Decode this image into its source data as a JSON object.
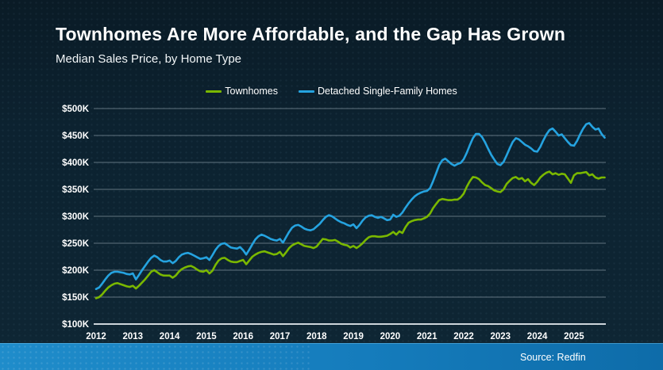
{
  "footer": {
    "source": "Source: Redfin"
  },
  "chart_data": {
    "type": "line",
    "title": "Townhomes Are More Affordable, and the Gap Has Grown",
    "subtitle": "Median Sales Price, by Home Type",
    "frequency": "monthly",
    "x_start": "2012-01",
    "x_end": "2025-11",
    "x_tick_labels": [
      "2012",
      "2013",
      "2014",
      "2015",
      "2016",
      "2017",
      "2018",
      "2019",
      "2020",
      "2021",
      "2022",
      "2023",
      "2024",
      "2025"
    ],
    "y_tick_values": [
      500,
      450,
      400,
      350,
      300,
      250,
      200,
      150,
      100
    ],
    "y_tick_labels": [
      "$500K",
      "$450K",
      "$400K",
      "$350K",
      "$300K",
      "$250K",
      "$200K",
      "$150K",
      "$100K"
    ],
    "ylim": [
      100,
      500
    ],
    "unit": "USD thousands",
    "grid": true,
    "legend_position": "top-center",
    "colors": {
      "townhomes": "#7ab800",
      "detached": "#25a3e0",
      "gridline": "#7e8f9a",
      "axis": "#e8eef2",
      "footer_bar": "#157cbc",
      "background": "#0c2230"
    },
    "series": [
      {
        "name": "Townhomes",
        "color": "#7ab800",
        "values": [
          148,
          150,
          155,
          162,
          168,
          172,
          175,
          176,
          174,
          172,
          170,
          169,
          171,
          166,
          171,
          177,
          183,
          190,
          197,
          200,
          196,
          192,
          190,
          190,
          190,
          186,
          190,
          197,
          202,
          205,
          207,
          208,
          205,
          201,
          198,
          197,
          200,
          194,
          199,
          210,
          218,
          222,
          223,
          219,
          216,
          215,
          215,
          217,
          219,
          211,
          218,
          225,
          229,
          232,
          234,
          235,
          233,
          231,
          229,
          230,
          234,
          226,
          233,
          241,
          246,
          249,
          251,
          248,
          245,
          244,
          243,
          241,
          244,
          251,
          258,
          257,
          255,
          255,
          256,
          253,
          249,
          247,
          246,
          242,
          245,
          241,
          245,
          250,
          256,
          261,
          263,
          263,
          262,
          262,
          263,
          264,
          267,
          271,
          266,
          272,
          269,
          280,
          288,
          291,
          293,
          294,
          294,
          296,
          299,
          305,
          315,
          323,
          330,
          332,
          331,
          330,
          330,
          331,
          331,
          335,
          342,
          355,
          365,
          373,
          372,
          369,
          363,
          358,
          356,
          352,
          348,
          346,
          345,
          350,
          360,
          366,
          371,
          373,
          369,
          371,
          365,
          369,
          362,
          358,
          364,
          372,
          377,
          381,
          383,
          378,
          380,
          377,
          379,
          378,
          370,
          362,
          376,
          380,
          380,
          381,
          382,
          376,
          378,
          372,
          370,
          372,
          372
        ]
      },
      {
        "name": "Detached Single-Family Homes",
        "color": "#25a3e0",
        "values": [
          165,
          168,
          175,
          183,
          190,
          195,
          197,
          197,
          196,
          195,
          193,
          192,
          194,
          183,
          191,
          200,
          208,
          216,
          223,
          227,
          224,
          219,
          216,
          216,
          218,
          213,
          217,
          224,
          229,
          231,
          232,
          230,
          227,
          224,
          221,
          222,
          224,
          219,
          228,
          238,
          245,
          249,
          250,
          246,
          242,
          241,
          240,
          243,
          237,
          229,
          238,
          248,
          257,
          263,
          266,
          264,
          261,
          258,
          256,
          255,
          258,
          251,
          261,
          271,
          279,
          283,
          284,
          281,
          277,
          275,
          274,
          276,
          281,
          286,
          293,
          299,
          302,
          300,
          296,
          292,
          289,
          287,
          284,
          282,
          285,
          278,
          284,
          292,
          298,
          301,
          302,
          299,
          297,
          299,
          296,
          293,
          294,
          303,
          299,
          301,
          307,
          316,
          324,
          331,
          337,
          341,
          344,
          346,
          347,
          352,
          365,
          380,
          395,
          404,
          407,
          402,
          397,
          394,
          397,
          399,
          406,
          418,
          432,
          445,
          453,
          453,
          447,
          437,
          425,
          414,
          405,
          397,
          395,
          401,
          413,
          426,
          438,
          445,
          443,
          438,
          433,
          430,
          426,
          421,
          420,
          429,
          441,
          452,
          460,
          463,
          457,
          450,
          452,
          445,
          438,
          432,
          431,
          440,
          452,
          463,
          471,
          473,
          466,
          461,
          463,
          453,
          446
        ]
      }
    ]
  }
}
